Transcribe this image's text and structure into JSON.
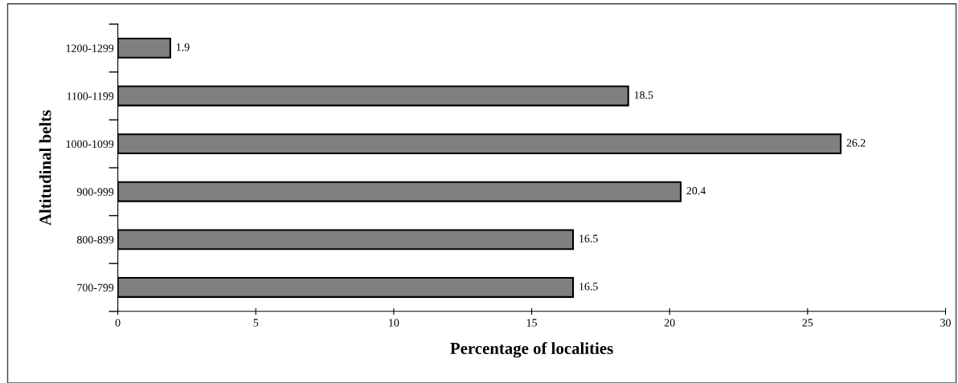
{
  "chart_data": {
    "type": "bar",
    "orientation": "horizontal",
    "xlabel": "Percentage of localities",
    "ylabel": "Altitudinal belts",
    "categories": [
      "1200-1299",
      "1100-1199",
      "1000-1099",
      "900-999",
      "800-899",
      "700-799"
    ],
    "values": [
      1.9,
      18.5,
      26.2,
      20.4,
      16.5,
      16.5
    ],
    "color": "#808080",
    "xlim": [
      0,
      30
    ],
    "xticks": [
      0,
      5,
      10,
      15,
      20,
      25,
      30
    ],
    "data_labels": true,
    "grid": false,
    "legend": false
  }
}
